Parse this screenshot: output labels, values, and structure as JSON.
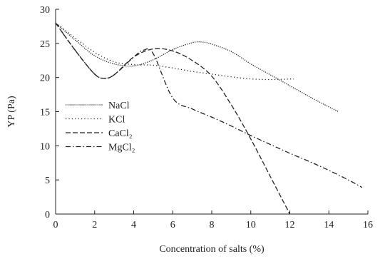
{
  "chart_data": {
    "type": "line",
    "xlabel": "Concentration of salts (%)",
    "ylabel": "YP (Pa)",
    "xlim": [
      0,
      16
    ],
    "ylim": [
      0,
      30
    ],
    "xticks": [
      0,
      2,
      4,
      6,
      8,
      10,
      12,
      14,
      16
    ],
    "yticks": [
      0,
      5,
      10,
      15,
      20,
      25,
      30
    ],
    "grid": false,
    "legend_position": "left-center",
    "series": [
      {
        "name": "NaCl",
        "dash": "dotted-fine",
        "x": [
          0,
          1,
          2,
          3,
          4,
          5,
          6,
          7,
          7.5,
          8,
          9,
          10,
          11,
          12,
          13,
          14,
          14.5
        ],
        "y": [
          28,
          25.5,
          23.2,
          22.0,
          21.7,
          22.6,
          24.1,
          25.1,
          25.2,
          24.9,
          23.8,
          22.0,
          20.4,
          18.8,
          17.2,
          15.7,
          15.0
        ]
      },
      {
        "name": "KCl",
        "dash": "dotted",
        "x": [
          0,
          1,
          2,
          3,
          4,
          5,
          6,
          7,
          8,
          9,
          10,
          11,
          12.2
        ],
        "y": [
          28,
          25.8,
          23.7,
          22.3,
          21.9,
          21.8,
          21.4,
          20.9,
          20.5,
          20.1,
          19.8,
          19.7,
          19.8
        ]
      },
      {
        "name": "CaCl₂",
        "dash": "dashed",
        "x": [
          0,
          1,
          2,
          2.5,
          3,
          4,
          5,
          6,
          7,
          8,
          9,
          10,
          11,
          12
        ],
        "y": [
          28,
          24.0,
          20.5,
          19.9,
          20.4,
          23.0,
          24.2,
          23.9,
          22.5,
          20.2,
          16.0,
          11.0,
          5.5,
          0
        ]
      },
      {
        "name": "MgCl₂",
        "dash": "dash-dot",
        "x": [
          0,
          1,
          2,
          2.5,
          3,
          4,
          4.5,
          5,
          6,
          7,
          8,
          9,
          10,
          11,
          12,
          13,
          14,
          15,
          15.7
        ],
        "y": [
          28,
          24.0,
          20.5,
          19.9,
          20.4,
          23.0,
          24.0,
          23.5,
          17.0,
          15.4,
          14.2,
          12.9,
          11.5,
          10.2,
          8.9,
          7.7,
          6.4,
          5.0,
          3.9
        ]
      }
    ]
  }
}
